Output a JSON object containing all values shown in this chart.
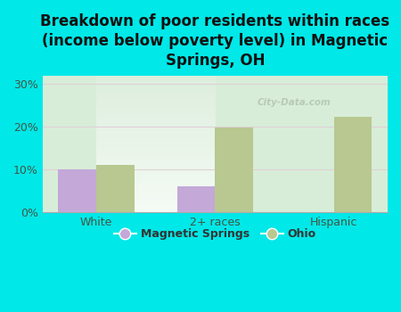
{
  "categories": [
    "White",
    "2+ races",
    "Hispanic"
  ],
  "magnetic_springs": [
    10.0,
    6.0,
    0.0
  ],
  "ohio": [
    11.0,
    19.8,
    22.3
  ],
  "bar_color_ms": "#c4a8d8",
  "bar_color_ohio": "#b8c890",
  "background_color": "#00e8e8",
  "plot_bg_top": "#e8f5ee",
  "plot_bg_bottom": "#c8e0c8",
  "title": "Breakdown of poor residents within races\n(income below poverty level) in Magnetic\nSprings, OH",
  "title_fontsize": 12,
  "title_fontweight": "bold",
  "ylim": [
    0,
    32
  ],
  "yticks": [
    0,
    10,
    20,
    30
  ],
  "ytick_labels": [
    "0%",
    "10%",
    "20%",
    "30%"
  ],
  "legend_labels": [
    "Magnetic Springs",
    "Ohio"
  ],
  "bar_width": 0.32,
  "watermark": "City-Data.com",
  "grid_color": "#e0d0d8",
  "spine_color": "#aaaaaa"
}
